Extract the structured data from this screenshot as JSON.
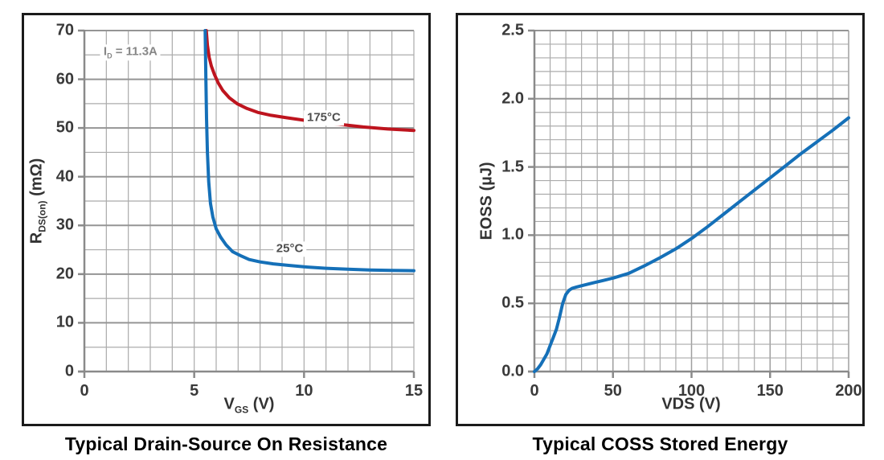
{
  "colors": {
    "frame": "#1b1b1b",
    "grid_minor": "#ababab",
    "grid_major": "#959595",
    "axis": "#8a8a8a",
    "tick_label": "#3a3a3a",
    "title": "#000000",
    "red_curve": "#be141e",
    "blue_curve": "#1570b8",
    "annotation_gray": "#878787",
    "annotation_dark": "#4f4f4f"
  },
  "chart_data": [
    {
      "type": "line",
      "title": "Typical Drain-Source On Resistance",
      "xlabel": {
        "pre": "V",
        "sub": "GS",
        "post": " (V)"
      },
      "ylabel": {
        "pre": "R",
        "sub": "DS(on)",
        "post": " (mΩ)"
      },
      "xlim": [
        0,
        15
      ],
      "ylim": [
        0,
        70
      ],
      "grid": true,
      "x_minor_step": 1,
      "y_minor_step": 5,
      "x_major_step": 5,
      "y_major_step": 10,
      "x_ticks": {
        "values": [
          0,
          5,
          10,
          15
        ],
        "labels": [
          "0",
          "5",
          "10",
          "15"
        ]
      },
      "y_ticks": {
        "values": [
          0,
          10,
          20,
          30,
          40,
          50,
          60,
          70
        ],
        "labels": [
          "0",
          "10",
          "20",
          "30",
          "40",
          "50",
          "60",
          "70"
        ]
      },
      "series": [
        {
          "name": "175°C",
          "color_key": "red_curve",
          "points": [
            [
              5.55,
              70
            ],
            [
              5.6,
              67
            ],
            [
              5.68,
              64.5
            ],
            [
              5.78,
              62.7
            ],
            [
              5.92,
              61
            ],
            [
              6.1,
              59.2
            ],
            [
              6.3,
              57.7
            ],
            [
              6.6,
              56.2
            ],
            [
              6.95,
              55
            ],
            [
              7.4,
              54
            ],
            [
              7.9,
              53.2
            ],
            [
              8.5,
              52.6
            ],
            [
              9.2,
              52.1
            ],
            [
              10,
              51.6
            ],
            [
              10.8,
              51.1
            ],
            [
              11.7,
              50.7
            ],
            [
              12.7,
              50.2
            ],
            [
              13.8,
              49.8
            ],
            [
              15,
              49.5
            ]
          ]
        },
        {
          "name": "25°C",
          "color_key": "blue_curve",
          "points": [
            [
              5.5,
              70
            ],
            [
              5.53,
              60
            ],
            [
              5.56,
              52
            ],
            [
              5.6,
              45
            ],
            [
              5.66,
              39
            ],
            [
              5.74,
              34.5
            ],
            [
              5.85,
              31.7
            ],
            [
              6.0,
              29.3
            ],
            [
              6.2,
              27.6
            ],
            [
              6.45,
              26
            ],
            [
              6.75,
              24.6
            ],
            [
              7.1,
              23.8
            ],
            [
              7.5,
              23.0
            ],
            [
              8.0,
              22.5
            ],
            [
              8.6,
              22.1
            ],
            [
              9.3,
              21.8
            ],
            [
              10,
              21.5
            ],
            [
              11,
              21.2
            ],
            [
              12,
              21.0
            ],
            [
              13,
              20.85
            ],
            [
              14,
              20.75
            ],
            [
              15,
              20.7
            ]
          ]
        }
      ],
      "annotations": [
        {
          "id": "drain-current-label",
          "pre": "I",
          "sub": "D",
          "post": " = 11.3A",
          "x": 2.1,
          "y": 65.5,
          "color_key": "annotation_gray"
        },
        {
          "id": "curve-label-175c",
          "pre": "",
          "sub": "",
          "post": "175°C",
          "x": 10.9,
          "y": 52,
          "color_key": "annotation_dark"
        },
        {
          "id": "curve-label-25c",
          "pre": "",
          "sub": "",
          "post": "25°C",
          "x": 9.35,
          "y": 25.1,
          "color_key": "annotation_dark"
        }
      ]
    },
    {
      "type": "line",
      "title": "Typical COSS Stored Energy",
      "xlabel": {
        "pre": "VDS",
        "sub": "",
        "post": " (V)"
      },
      "ylabel": {
        "pre": "EOSS",
        "sub": "",
        "post": " (µJ)"
      },
      "xlim": [
        0,
        200
      ],
      "ylim": [
        0,
        2.5
      ],
      "grid": true,
      "x_minor_step": 10,
      "y_minor_step": 0.1,
      "x_major_step": 50,
      "y_major_step": 0.5,
      "x_ticks": {
        "values": [
          0,
          50,
          100,
          150,
          200
        ],
        "labels": [
          "0",
          "50",
          "100",
          "150",
          "200"
        ]
      },
      "y_ticks": {
        "values": [
          0,
          0.5,
          1.0,
          1.5,
          2.0,
          2.5
        ],
        "labels": [
          "0.0",
          "0.5",
          "1.0",
          "1.5",
          "2.0",
          "2.5"
        ]
      },
      "series": [
        {
          "name": "EOSS",
          "color_key": "blue_curve",
          "points": [
            [
              0,
              0
            ],
            [
              2,
              0.02
            ],
            [
              4,
              0.05
            ],
            [
              6,
              0.09
            ],
            [
              8,
              0.13
            ],
            [
              10,
              0.19
            ],
            [
              12,
              0.25
            ],
            [
              14,
              0.31
            ],
            [
              16,
              0.4
            ],
            [
              18,
              0.5
            ],
            [
              20,
              0.565
            ],
            [
              22,
              0.595
            ],
            [
              24,
              0.61
            ],
            [
              27,
              0.62
            ],
            [
              32,
              0.635
            ],
            [
              38,
              0.652
            ],
            [
              44,
              0.668
            ],
            [
              50,
              0.685
            ],
            [
              60,
              0.72
            ],
            [
              70,
              0.775
            ],
            [
              80,
              0.835
            ],
            [
              90,
              0.9
            ],
            [
              100,
              0.975
            ],
            [
              110,
              1.06
            ],
            [
              120,
              1.15
            ],
            [
              130,
              1.24
            ],
            [
              140,
              1.33
            ],
            [
              150,
              1.42
            ],
            [
              160,
              1.51
            ],
            [
              170,
              1.6
            ],
            [
              180,
              1.685
            ],
            [
              190,
              1.77
            ],
            [
              200,
              1.86
            ]
          ]
        }
      ],
      "annotations": []
    }
  ]
}
